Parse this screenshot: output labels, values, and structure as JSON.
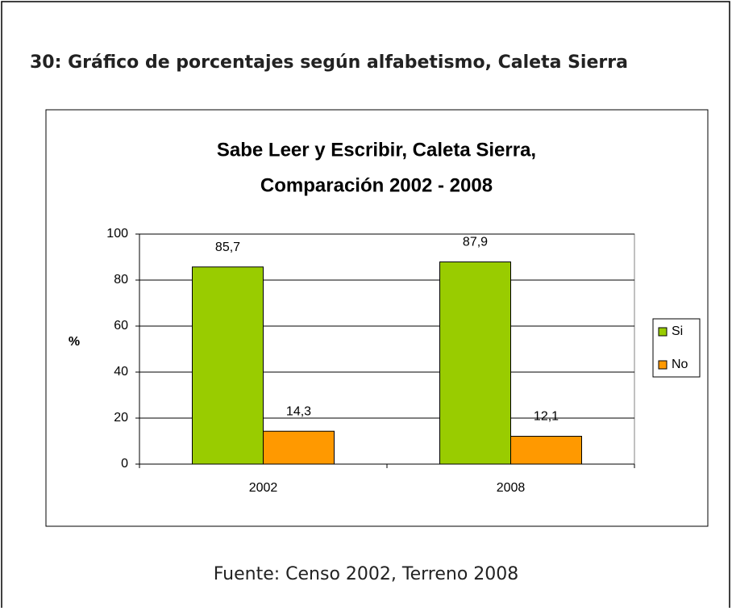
{
  "heading": "30: Gráfico de porcentajes según alfabetismo, Caleta Sierra",
  "chart_data": {
    "type": "bar",
    "title": [
      "Sabe Leer y Escribir, Caleta Sierra,",
      "Comparación 2002 - 2008"
    ],
    "y_label": "%",
    "categories": [
      "2002",
      "2008"
    ],
    "series": [
      {
        "name": "Si",
        "color": "#99cc00",
        "values": [
          85.7,
          87.9
        ],
        "value_labels": [
          "85,7",
          "87,9"
        ]
      },
      {
        "name": "No",
        "color": "#ff9900",
        "values": [
          14.3,
          12.1
        ],
        "value_labels": [
          "14,3",
          "12,1"
        ]
      }
    ],
    "ylim": [
      0,
      100
    ],
    "yticks": [
      0,
      20,
      40,
      60,
      80,
      100
    ],
    "grid": true,
    "legend": "right"
  },
  "source": "Fuente: Censo 2002, Terreno 2008"
}
